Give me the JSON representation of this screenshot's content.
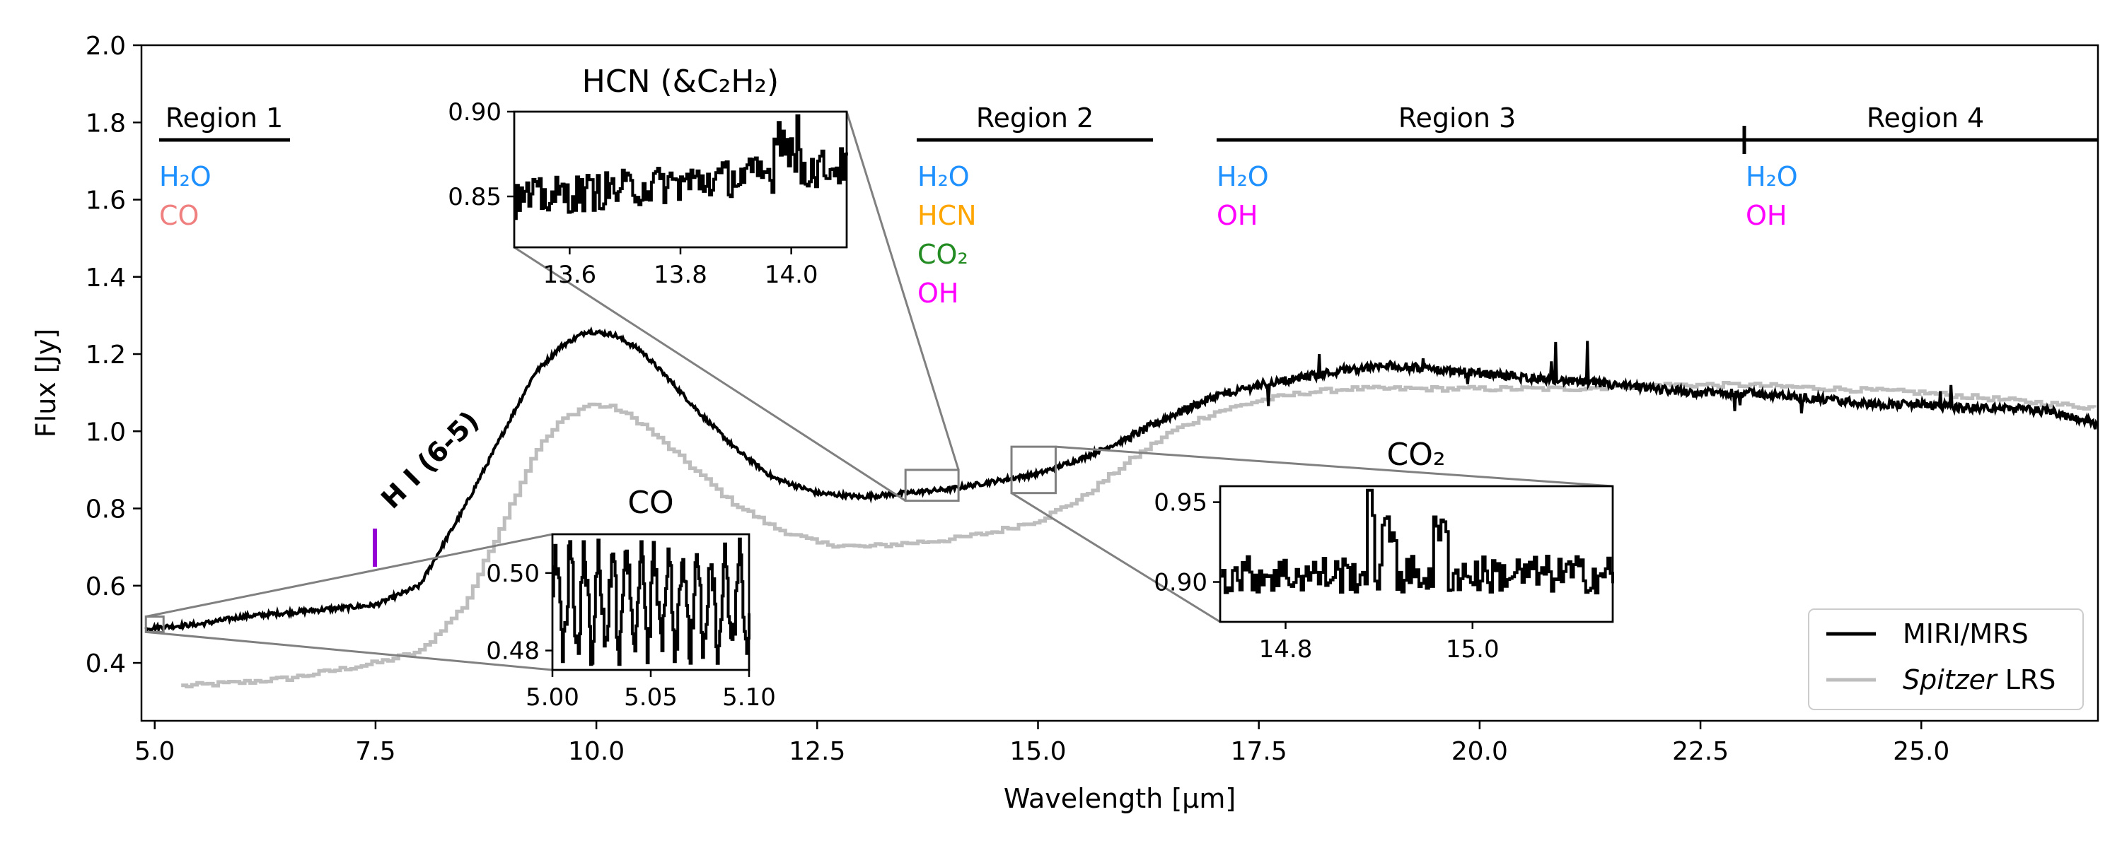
{
  "chart_data": {
    "type": "line",
    "xlabel": "Wavelength [μm]",
    "ylabel": "Flux [Jy]",
    "xlim": [
      4.85,
      27.0
    ],
    "ylim": [
      0.25,
      2.0
    ],
    "x_ticks": [
      "5.0",
      "7.5",
      "10.0",
      "12.5",
      "15.0",
      "17.5",
      "20.0",
      "22.5",
      "25.0"
    ],
    "y_ticks": [
      "0.4",
      "0.6",
      "0.8",
      "1.0",
      "1.2",
      "1.4",
      "1.6",
      "1.8",
      "2.0"
    ],
    "legend": {
      "position": "bottom-right",
      "entries": [
        {
          "label": "MIRI/MRS",
          "label_italic": "",
          "label_rest": "",
          "color": "#000000"
        },
        {
          "label": "",
          "label_italic": "Spitzer",
          "label_rest": " LRS",
          "color": "#bdbdbd"
        }
      ]
    },
    "series": [
      {
        "name": "MIRI/MRS",
        "color": "#000000",
        "x": [
          4.9,
          5.5,
          6.0,
          6.5,
          7.0,
          7.5,
          8.0,
          8.5,
          9.0,
          9.3,
          9.6,
          9.9,
          10.2,
          10.5,
          10.8,
          11.2,
          11.6,
          12.0,
          12.5,
          13.0,
          13.5,
          14.0,
          14.5,
          15.0,
          15.5,
          16.0,
          16.5,
          17.0,
          17.5,
          18.0,
          18.5,
          19.0,
          19.5,
          20.0,
          20.5,
          21.0,
          21.5,
          22.0,
          22.5,
          23.0,
          23.5,
          24.0,
          24.5,
          25.0,
          25.5,
          26.0,
          26.5,
          27.0
        ],
        "y": [
          0.49,
          0.5,
          0.52,
          0.53,
          0.54,
          0.55,
          0.6,
          0.8,
          1.02,
          1.15,
          1.22,
          1.26,
          1.25,
          1.21,
          1.14,
          1.04,
          0.95,
          0.88,
          0.84,
          0.83,
          0.84,
          0.85,
          0.87,
          0.89,
          0.93,
          0.98,
          1.04,
          1.09,
          1.12,
          1.14,
          1.16,
          1.17,
          1.16,
          1.15,
          1.14,
          1.13,
          1.12,
          1.11,
          1.1,
          1.1,
          1.09,
          1.08,
          1.07,
          1.07,
          1.06,
          1.06,
          1.05,
          1.02
        ]
      },
      {
        "name": "Spitzer LRS",
        "color": "#bdbdbd",
        "x": [
          5.3,
          6.0,
          6.5,
          7.0,
          7.5,
          8.0,
          8.5,
          9.0,
          9.3,
          9.6,
          9.9,
          10.2,
          10.5,
          11.0,
          11.5,
          12.0,
          12.5,
          13.0,
          13.5,
          14.0,
          14.5,
          15.0,
          15.5,
          16.0,
          16.5,
          17.0,
          17.5,
          18.0,
          18.5,
          19.0,
          20.0,
          21.0,
          22.0,
          23.0,
          24.0,
          25.0,
          26.0,
          27.0
        ],
        "y": [
          0.34,
          0.35,
          0.36,
          0.38,
          0.4,
          0.43,
          0.55,
          0.8,
          0.95,
          1.03,
          1.07,
          1.06,
          1.02,
          0.92,
          0.82,
          0.75,
          0.71,
          0.7,
          0.71,
          0.72,
          0.74,
          0.77,
          0.83,
          0.92,
          1.0,
          1.05,
          1.08,
          1.1,
          1.11,
          1.11,
          1.11,
          1.11,
          1.12,
          1.12,
          1.11,
          1.1,
          1.08,
          1.06
        ]
      }
    ],
    "annotations": {
      "hi_label": "H I (6-5)",
      "hi_marker_color": "#9400d3",
      "regions": [
        {
          "name": "Region 1",
          "species": [
            {
              "text": "H₂O",
              "color": "#1e90ff"
            },
            {
              "text": "CO",
              "color": "#f08080"
            }
          ]
        },
        {
          "name": "Region 2",
          "species": [
            {
              "text": "H₂O",
              "color": "#1e90ff"
            },
            {
              "text": "HCN",
              "color": "#ffa500"
            },
            {
              "text": "CO₂",
              "color": "#228b22"
            },
            {
              "text": "OH",
              "color": "#ff00ff"
            }
          ]
        },
        {
          "name": "Region 3",
          "species": [
            {
              "text": "H₂O",
              "color": "#1e90ff"
            },
            {
              "text": "OH",
              "color": "#ff00ff"
            }
          ]
        },
        {
          "name": "Region 4",
          "species": [
            {
              "text": "H₂O",
              "color": "#1e90ff"
            },
            {
              "text": "OH",
              "color": "#ff00ff"
            }
          ]
        }
      ]
    },
    "insets": [
      {
        "id": "hcn",
        "title": "HCN (&C₂H₂)",
        "xlim": [
          13.5,
          14.1
        ],
        "ylim": [
          0.82,
          0.9
        ],
        "x_ticks": [
          "13.6",
          "13.8",
          "14.0"
        ],
        "y_ticks": [
          "0.85",
          "0.90"
        ],
        "source_xlim": [
          13.5,
          14.1
        ],
        "source_ylim": [
          0.82,
          0.9
        ]
      },
      {
        "id": "co",
        "title": "CO",
        "xlim": [
          5.0,
          5.1
        ],
        "ylim": [
          0.475,
          0.51
        ],
        "x_ticks": [
          "5.00",
          "5.05",
          "5.10"
        ],
        "y_ticks": [
          "0.48",
          "0.50"
        ],
        "source_xlim": [
          4.9,
          5.1
        ],
        "source_ylim": [
          0.48,
          0.52
        ]
      },
      {
        "id": "co2",
        "title": "CO₂",
        "xlim": [
          14.73,
          15.15
        ],
        "ylim": [
          0.875,
          0.96
        ],
        "x_ticks": [
          "14.8",
          "15.0"
        ],
        "y_ticks": [
          "0.90",
          "0.95"
        ],
        "source_xlim": [
          14.7,
          15.2
        ],
        "source_ylim": [
          0.84,
          0.96
        ]
      }
    ]
  }
}
